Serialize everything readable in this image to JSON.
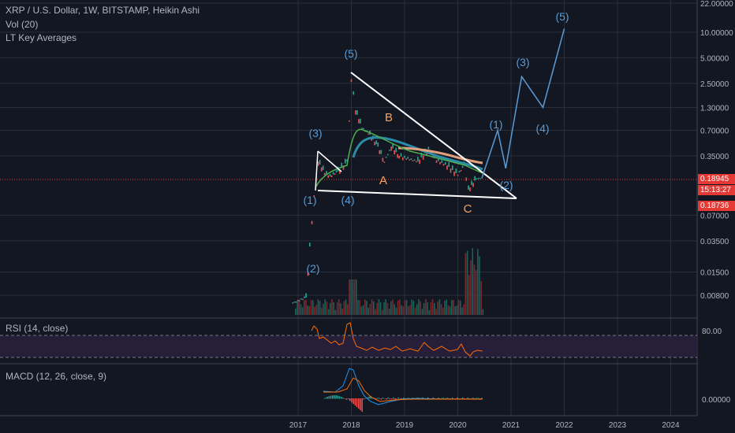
{
  "header": {
    "symbol": "XRP / U.S. Dollar, 1W, BITSTAMP, Heikin Ashi",
    "vol": "Vol (20)",
    "ma": "LT Key Averages"
  },
  "panes": {
    "rsi_title": "RSI (14, close)",
    "macd_title": "MACD (12, 26, close, 9)"
  },
  "price_boxes": {
    "last": "0.18945",
    "countdown": "15:13:27",
    "ha_close": "0.18736"
  },
  "colors": {
    "background": "#131722",
    "up": "#26a69a",
    "down": "#ef5350",
    "wave_label": "#5b9bd5",
    "abc_label": "#f4a261",
    "trendline": "#ffffff",
    "rsi_line": "#ff6d00",
    "rsi_band": "#2a1f3d",
    "macd_line": "#2196f3",
    "signal_line": "#ff6d00",
    "price_line": "#e53935"
  },
  "chart_data": {
    "type": "line",
    "scale": "log",
    "y_ticks": [
      "22.00000",
      "10.00000",
      "5.00000",
      "2.50000",
      "1.30000",
      "0.70000",
      "0.35000",
      "0.18945",
      "0.07000",
      "0.03500",
      "0.01500",
      "0.00800"
    ],
    "x_ticks": [
      "2017",
      "2018",
      "2019",
      "2020",
      "2021",
      "2022",
      "2023",
      "2024"
    ],
    "rsi_ticks": [
      "80.00"
    ],
    "macd_ticks": [
      "0.00000"
    ],
    "wave_labels": [
      "(1)",
      "(2)",
      "(3)",
      "(4)",
      "(5)",
      "(1)",
      "(2)",
      "(3)",
      "(4)",
      "(5)"
    ],
    "abc_labels": [
      "A",
      "B",
      "C"
    ],
    "price_series": [
      {
        "date": "2016.9",
        "price": 0.0065
      },
      {
        "date": "2017.15",
        "price": 0.0075
      },
      {
        "date": "2017.22",
        "price": 0.03
      },
      {
        "date": "2017.3",
        "price": 0.12
      },
      {
        "date": "2017.38",
        "price": 0.3
      },
      {
        "date": "2017.5",
        "price": 0.22
      },
      {
        "date": "2017.6",
        "price": 0.2
      },
      {
        "date": "2017.75",
        "price": 0.23
      },
      {
        "date": "2017.92",
        "price": 0.3
      },
      {
        "date": "2018.0",
        "price": 2.8
      },
      {
        "date": "2018.08",
        "price": 1.2
      },
      {
        "date": "2018.2",
        "price": 0.75
      },
      {
        "date": "2018.35",
        "price": 0.62
      },
      {
        "date": "2018.5",
        "price": 0.45
      },
      {
        "date": "2018.62",
        "price": 0.3
      },
      {
        "date": "2018.75",
        "price": 0.45
      },
      {
        "date": "2018.9",
        "price": 0.35
      },
      {
        "date": "2019.0",
        "price": 0.33
      },
      {
        "date": "2019.25",
        "price": 0.3
      },
      {
        "date": "2019.45",
        "price": 0.42
      },
      {
        "date": "2019.6",
        "price": 0.31
      },
      {
        "date": "2019.8",
        "price": 0.27
      },
      {
        "date": "2020.0",
        "price": 0.21
      },
      {
        "date": "2020.12",
        "price": 0.27
      },
      {
        "date": "2020.2",
        "price": 0.14
      },
      {
        "date": "2020.35",
        "price": 0.19
      },
      {
        "date": "2020.45",
        "price": 0.19
      }
    ],
    "forecast_path": [
      {
        "date": "2020.45",
        "price": 0.19
      },
      {
        "date": "2020.75",
        "price": 0.7
      },
      {
        "date": "2020.9",
        "price": 0.25
      },
      {
        "date": "2021.2",
        "price": 3.0
      },
      {
        "date": "2021.6",
        "price": 1.3
      },
      {
        "date": "2022.0",
        "price": 11.0
      }
    ]
  }
}
